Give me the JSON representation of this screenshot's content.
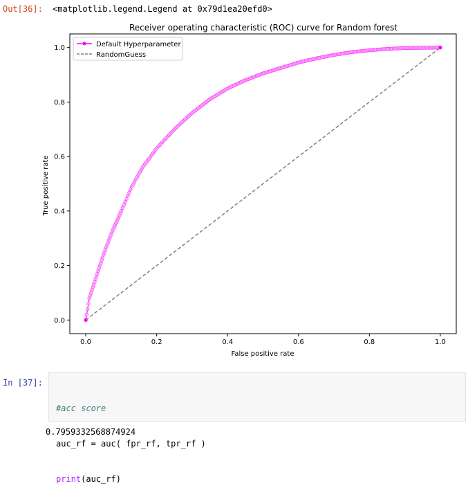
{
  "out_cell": {
    "prompt": "Out[36]:",
    "text": "<matplotlib.legend.Legend at 0x79d1ea20efd0>"
  },
  "in_cell": {
    "prompt": "In [37]:",
    "code": {
      "comment": "#acc score",
      "line2_var": "auc_rf = auc( fpr_rf, tpr_rf )",
      "line3_builtin": "print",
      "line3_rest": "(auc_rf)"
    },
    "output": "0.7959332568874924"
  },
  "colors": {
    "roc_line": "#ff00ff",
    "roc_marker_fill": "#f7b6f7",
    "random_line": "#808080",
    "out_prompt": "#D84315",
    "in_prompt": "#303F9F"
  },
  "chart_data": {
    "type": "line",
    "title": "Receiver operating characteristic (ROC) curve for Random forest",
    "xlabel": "False positive rate",
    "ylabel": "True positive rate",
    "xlim": [
      -0.045,
      1.045
    ],
    "ylim": [
      -0.05,
      1.05
    ],
    "xticks": [
      "0.0",
      "0.2",
      "0.4",
      "0.6",
      "0.8",
      "1.0"
    ],
    "yticks": [
      "0.0",
      "0.2",
      "0.4",
      "0.6",
      "0.8",
      "1.0"
    ],
    "grid": false,
    "legend_position": "top-left",
    "series": [
      {
        "name": "Default Hyperparameter",
        "style": "solid-marker",
        "x": [
          0.0,
          0.005,
          0.01,
          0.02,
          0.03,
          0.05,
          0.07,
          0.1,
          0.13,
          0.16,
          0.2,
          0.25,
          0.3,
          0.35,
          0.4,
          0.45,
          0.5,
          0.55,
          0.6,
          0.65,
          0.7,
          0.75,
          0.8,
          0.85,
          0.9,
          0.95,
          1.0
        ],
        "y": [
          0.0,
          0.04,
          0.08,
          0.12,
          0.16,
          0.24,
          0.31,
          0.4,
          0.49,
          0.56,
          0.63,
          0.7,
          0.76,
          0.81,
          0.85,
          0.88,
          0.905,
          0.925,
          0.945,
          0.96,
          0.973,
          0.983,
          0.99,
          0.995,
          0.998,
          0.999,
          1.0
        ]
      },
      {
        "name": "RandomGuess",
        "style": "dashed",
        "x": [
          0.0,
          1.0
        ],
        "y": [
          0.0,
          1.0
        ]
      }
    ]
  }
}
